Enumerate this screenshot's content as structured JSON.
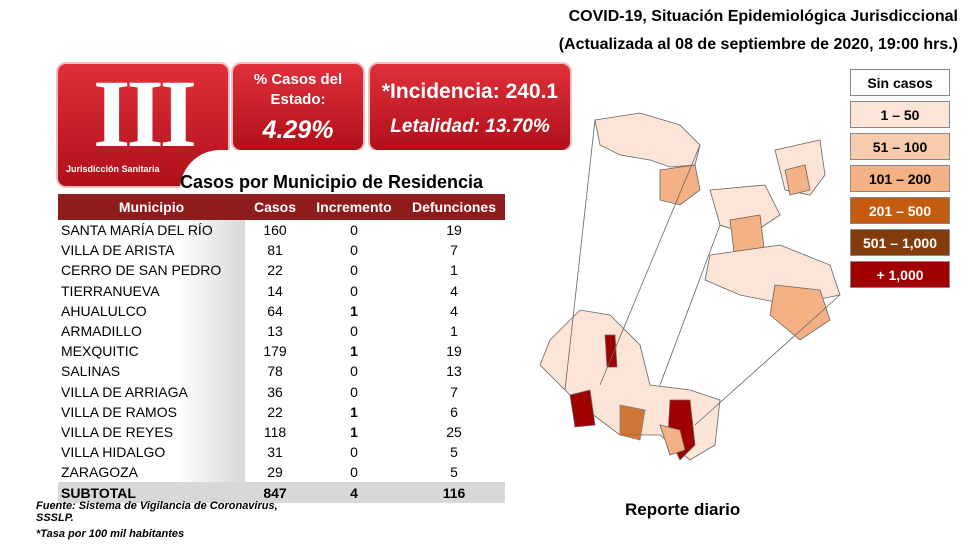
{
  "header": {
    "title": "COVID-19, Situación Epidemiológica Jurisdiccional",
    "subtitle": "(Actualizada al 08 de septiembre de 2020, 19:00 hrs.)"
  },
  "badges": {
    "roman": "III",
    "jurisdiction": "Jurisdicción Sanitaria",
    "state_label": "% Casos del Estado:",
    "state_value": "4.29%",
    "incidence": "*Incidencia: 240.1",
    "lethality": "Letalidad: 13.70%"
  },
  "table": {
    "title": "Casos por Municipio  de Residencia",
    "columns": [
      "Municipio",
      "Casos",
      "Incremento",
      "Defunciones"
    ],
    "rows": [
      [
        "SANTA MARÍA DEL RÍO",
        160,
        0,
        19
      ],
      [
        "VILLA DE ARISTA",
        81,
        0,
        7
      ],
      [
        "CERRO DE SAN PEDRO",
        22,
        0,
        1
      ],
      [
        "TIERRANUEVA",
        14,
        0,
        4
      ],
      [
        "AHUALULCO",
        64,
        1,
        4
      ],
      [
        "ARMADILLO",
        13,
        0,
        1
      ],
      [
        "MEXQUITIC",
        179,
        1,
        19
      ],
      [
        "SALINAS",
        78,
        0,
        13
      ],
      [
        "VILLA DE ARRIAGA",
        36,
        0,
        7
      ],
      [
        "VILLA DE RAMOS",
        22,
        1,
        6
      ],
      [
        "VILLA DE REYES",
        118,
        1,
        25
      ],
      [
        "VILLA HIDALGO",
        31,
        0,
        5
      ],
      [
        "ZARAGOZA",
        29,
        0,
        5
      ]
    ],
    "subtotal": [
      "SUBTOTAL",
      847,
      4,
      116
    ]
  },
  "legend": [
    "Sin casos",
    "1 – 50",
    "51 – 100",
    "101 – 200",
    "201 – 500",
    "501 – 1,000",
    "+ 1,000"
  ],
  "notes": {
    "source": "Fuente: Sistema de Vigilancia  de Coronavirus, SSSLP.",
    "rate": "*Tasa por 100 mil habitantes"
  },
  "report": "Reporte diario"
}
